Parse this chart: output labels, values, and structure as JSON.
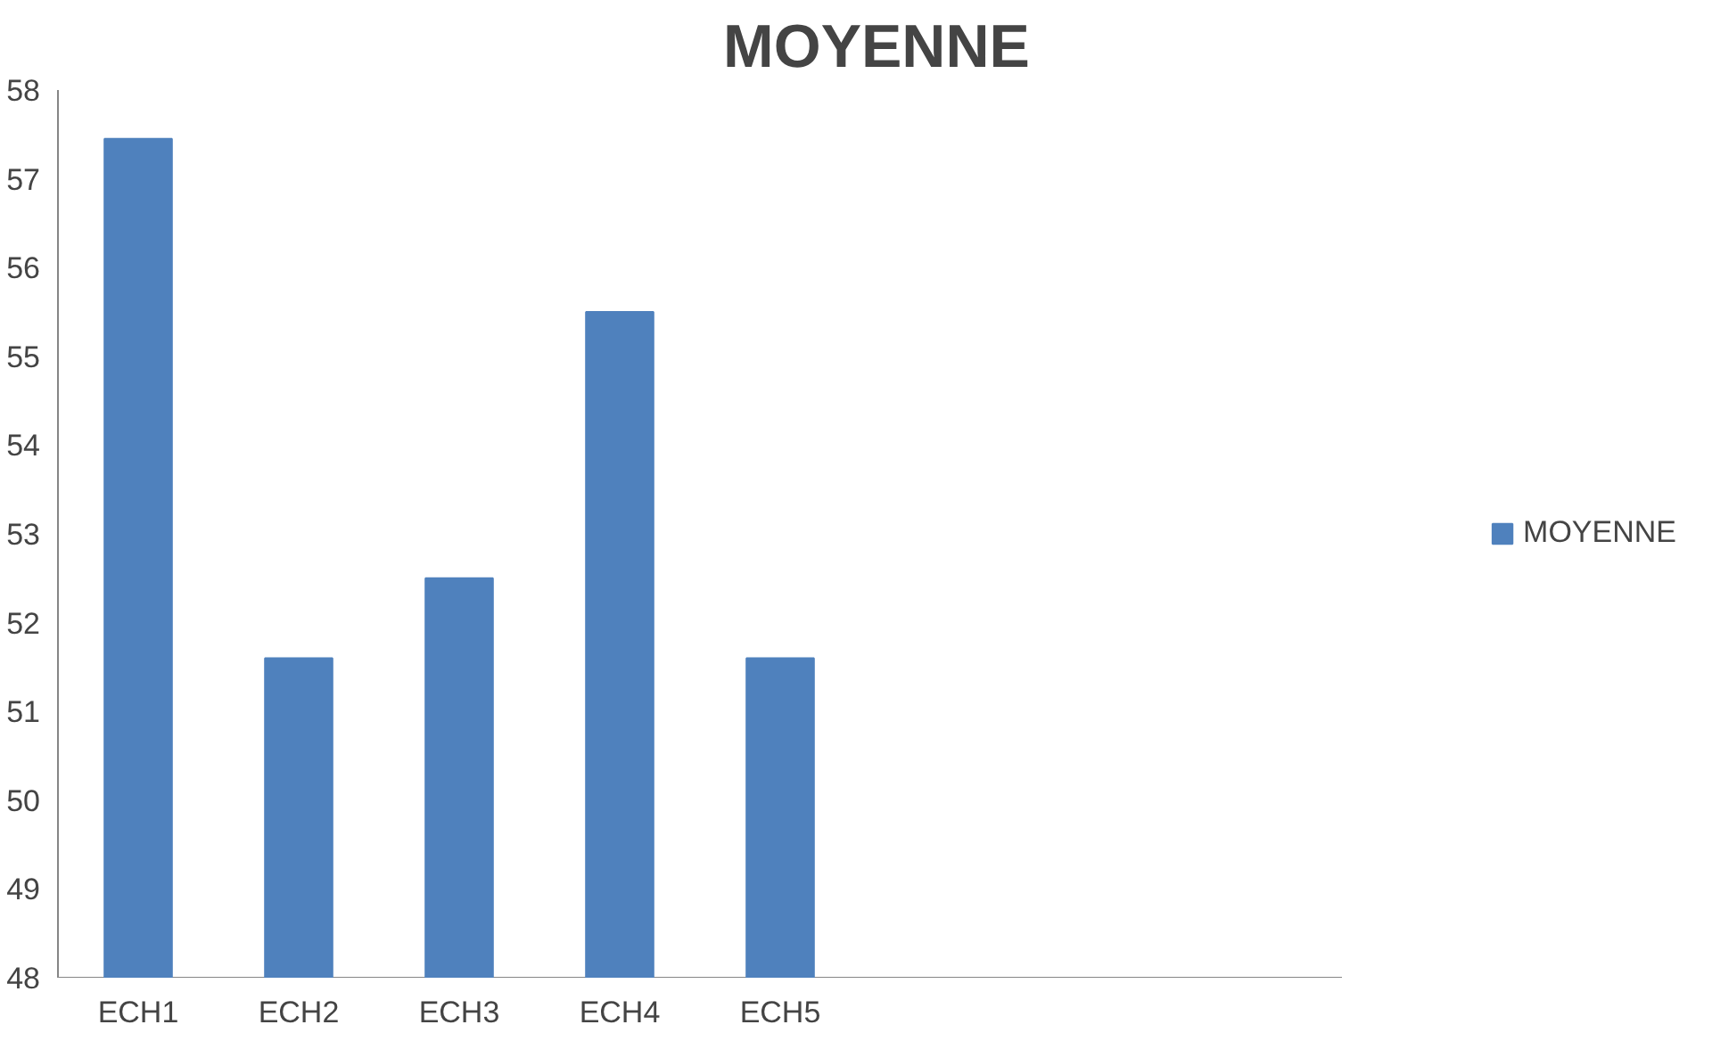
{
  "chart_data": {
    "type": "bar",
    "title": "MOYENNE",
    "categories": [
      "ECH1",
      "ECH2",
      "ECH3",
      "ECH4",
      "ECH5",
      null,
      null,
      null
    ],
    "series": [
      {
        "name": "MOYENNE",
        "color": "#4f81bd",
        "values": [
          57.45,
          51.6,
          52.5,
          55.5,
          51.6,
          null,
          null,
          null
        ]
      }
    ],
    "ylim": [
      48,
      58
    ],
    "yticks": [
      48,
      49,
      50,
      51,
      52,
      53,
      54,
      55,
      56,
      57,
      58
    ],
    "grid": false,
    "legend": "right"
  }
}
